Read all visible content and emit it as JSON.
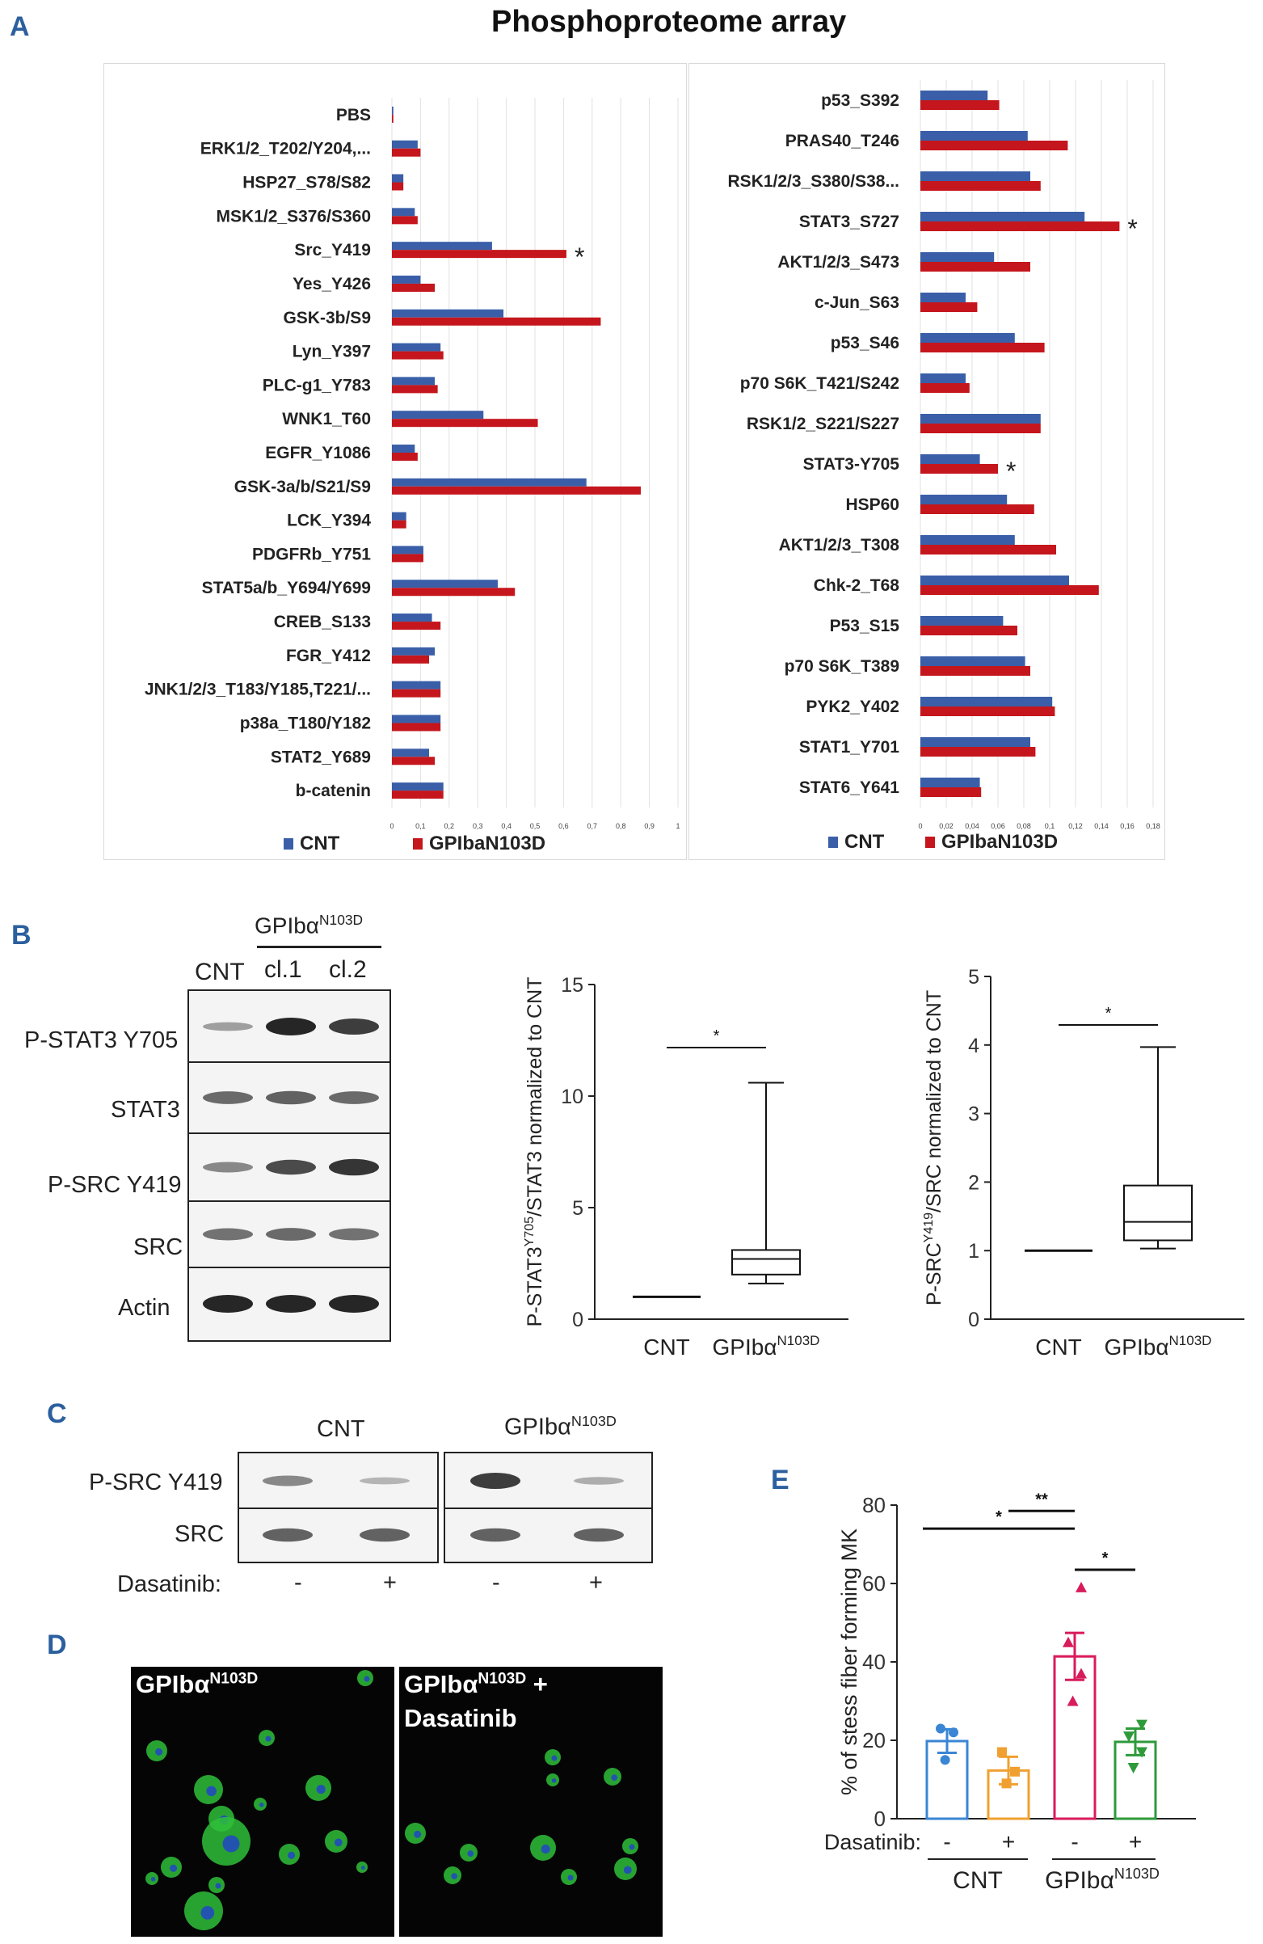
{
  "panel_letters": {
    "a": "A",
    "b": "B",
    "c": "C",
    "d": "D",
    "e": "E"
  },
  "colors": {
    "cnt": "#3a5fa8",
    "gpiba": "#c4161c",
    "blot_dark": "#1a1a1a",
    "bar_cnt": "#3a86d4",
    "bar_cnt_dasa": "#f0a030",
    "bar_gp": "#d81b5b",
    "bar_gp_dasa": "#2e9a3a",
    "nucleus": "#2040d0",
    "cell": "#2fbf3a"
  },
  "panel_a": {
    "title": "Phosphoproteome array"
  },
  "chart_data": [
    {
      "id": "A-left",
      "type": "bar",
      "orientation": "horizontal",
      "categories": [
        "PBS",
        "ERK1/2_T202/Y204,...",
        "HSP27_S78/S82",
        "MSK1/2_S376/S360",
        "Src_Y419",
        "Yes_Y426",
        "GSK-3b/S9",
        "Lyn_Y397",
        "PLC-g1_Y783",
        "WNK1_T60",
        "EGFR_Y1086",
        "GSK-3a/b/S21/S9",
        "LCK_Y394",
        "PDGFRb_Y751",
        "STAT5a/b_Y694/Y699",
        "CREB_S133",
        "FGR_Y412",
        "JNK1/2/3_T183/Y185,T221/...",
        "p38a_T180/Y182",
        "STAT2_Y689",
        "b-catenin"
      ],
      "series": [
        {
          "name": "CNT",
          "values": [
            0.005,
            0.09,
            0.04,
            0.08,
            0.35,
            0.1,
            0.39,
            0.17,
            0.15,
            0.32,
            0.08,
            0.68,
            0.05,
            0.11,
            0.37,
            0.14,
            0.15,
            0.17,
            0.17,
            0.13,
            0.18
          ]
        },
        {
          "name": "GPIbaN103D",
          "values": [
            0.005,
            0.1,
            0.04,
            0.09,
            0.61,
            0.15,
            0.73,
            0.18,
            0.16,
            0.51,
            0.09,
            0.87,
            0.05,
            0.11,
            0.43,
            0.17,
            0.13,
            0.17,
            0.17,
            0.15,
            0.18
          ]
        }
      ],
      "xlim": [
        0,
        1
      ],
      "xticks": [
        "0",
        "0,1",
        "0,2",
        "0,3",
        "0,4",
        "0,5",
        "0,6",
        "0,7",
        "0,8",
        "0,9",
        "1"
      ],
      "significant": [
        "Src_Y419"
      ],
      "star": "*",
      "legend": [
        "CNT",
        "GPIbaN103D"
      ]
    },
    {
      "id": "A-right",
      "type": "bar",
      "orientation": "horizontal",
      "categories": [
        "p53_S392",
        "PRAS40_T246",
        "RSK1/2/3_S380/S38...",
        "STAT3_S727",
        "AKT1/2/3_S473",
        "c-Jun_S63",
        "p53_S46",
        "p70 S6K_T421/S242",
        "RSK1/2_S221/S227",
        "STAT3-Y705",
        "HSP60",
        "AKT1/2/3_T308",
        "Chk-2_T68",
        "P53_S15",
        "p70 S6K_T389",
        "PYK2_Y402",
        "STAT1_Y701",
        "STAT6_Y641"
      ],
      "series": [
        {
          "name": "CNT",
          "values": [
            0.052,
            0.083,
            0.085,
            0.127,
            0.057,
            0.035,
            0.073,
            0.035,
            0.093,
            0.046,
            0.067,
            0.073,
            0.115,
            0.064,
            0.081,
            0.102,
            0.085,
            0.046
          ]
        },
        {
          "name": "GPIbaN103D",
          "values": [
            0.061,
            0.114,
            0.093,
            0.154,
            0.085,
            0.044,
            0.096,
            0.038,
            0.093,
            0.06,
            0.088,
            0.105,
            0.138,
            0.075,
            0.085,
            0.104,
            0.089,
            0.047
          ]
        }
      ],
      "xlim": [
        0,
        0.18
      ],
      "xticks": [
        "0",
        "0,02",
        "0,04",
        "0,06",
        "0,08",
        "0,1",
        "0,12",
        "0,14",
        "0,16",
        "0,18"
      ],
      "significant": [
        "STAT3_S727",
        "STAT3-Y705"
      ],
      "star": "*",
      "legend": [
        "CNT",
        "GPIbaN103D"
      ]
    },
    {
      "id": "B-stat3",
      "type": "boxplot",
      "ylabel_main": "P-STAT3",
      "ylabel_sup": "Y705",
      "ylabel_rest": "/STAT3 normalized to CNT",
      "ylim": [
        0,
        15
      ],
      "yticks": [
        "0",
        "5",
        "10",
        "15"
      ],
      "groups": [
        {
          "name": "CNT",
          "min": 1,
          "q1": 1,
          "median": 1,
          "q3": 1,
          "max": 1
        },
        {
          "name": "GPIbα",
          "name_sup": "N103D",
          "min": 1.6,
          "q1": 2.0,
          "median": 2.7,
          "q3": 3.1,
          "max": 10.6
        }
      ],
      "significance": "*"
    },
    {
      "id": "B-src",
      "type": "boxplot",
      "ylabel_main": "P-SRC",
      "ylabel_sup": "Y419",
      "ylabel_rest": "/SRC normalized to CNT",
      "ylim": [
        0,
        5
      ],
      "yticks": [
        "0",
        "1",
        "2",
        "3",
        "4",
        "5"
      ],
      "groups": [
        {
          "name": "CNT",
          "min": 1,
          "q1": 1,
          "median": 1,
          "q3": 1,
          "max": 1
        },
        {
          "name": "GPIbα",
          "name_sup": "N103D",
          "min": 1.03,
          "q1": 1.15,
          "median": 1.42,
          "q3": 1.95,
          "max": 3.97
        }
      ],
      "significance": "*"
    },
    {
      "id": "E",
      "type": "bar",
      "ylabel": "% of stess fiber forming MK",
      "ylim": [
        0,
        80
      ],
      "yticks": [
        "0",
        "20",
        "40",
        "60",
        "80"
      ],
      "groups": [
        {
          "dasatinib": "-",
          "mean": 19.8,
          "sem": 3.0,
          "points": [
            15,
            22,
            23
          ]
        },
        {
          "dasatinib": "+",
          "mean": 12.3,
          "sem": 3.5,
          "points": [
            9,
            12,
            17
          ]
        },
        {
          "dasatinib": "-",
          "mean": 41.4,
          "sem": 6.0,
          "points": [
            30,
            37,
            45,
            59
          ]
        },
        {
          "dasatinib": "+",
          "mean": 19.6,
          "sem": 3.4,
          "points": [
            13,
            17,
            21,
            24
          ]
        }
      ],
      "dasatinib_label": "Dasatinib:",
      "group_labels": [
        {
          "text": "CNT"
        },
        {
          "text": "GPIbα",
          "sup": "N103D"
        }
      ],
      "comparisons": [
        {
          "from": 0,
          "to": 2,
          "label": "*"
        },
        {
          "from": 1,
          "to": 2,
          "label": "**"
        },
        {
          "from": 2,
          "to": 3,
          "label": "*"
        }
      ]
    }
  ],
  "panel_b": {
    "header": "GPIbα",
    "header_sup": "N103D",
    "lanes": [
      "CNT",
      "cl.1",
      "cl.2"
    ],
    "rows": [
      "P-STAT3 Y705",
      "STAT3",
      "P-SRC Y419",
      "SRC",
      "Actin"
    ]
  },
  "panel_c": {
    "header_cnt": "CNT",
    "header_gp": "GPIbα",
    "header_gp_sup": "N103D",
    "rows": [
      "P-SRC Y419",
      "SRC"
    ],
    "dasatinib_label": "Dasatinib:",
    "dasatinib_values": [
      "-",
      "+",
      "-",
      "+"
    ]
  },
  "panel_d": {
    "left_label": "GPIbα",
    "left_label_sup": "N103D",
    "right_label": "GPIbα",
    "right_label_sup": "N103D",
    "right_label_plus": " +",
    "right_label_line2": "Dasatinib"
  }
}
